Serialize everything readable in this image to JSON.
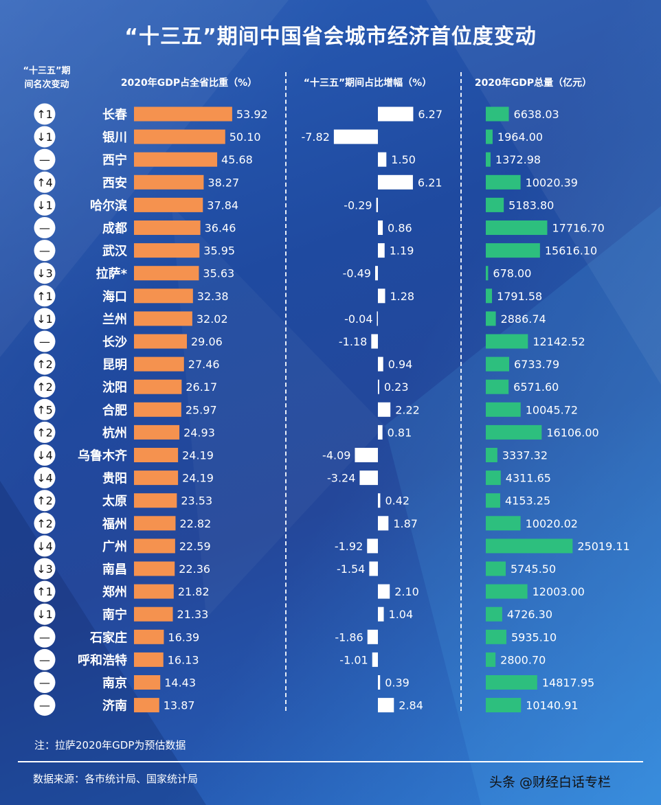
{
  "title": "“十三五”期间中国省会城市经济首位度变动",
  "headers": {
    "rank_line1": "“十三五”期",
    "rank_line2": "间名次变动",
    "share": "2020年GDP占全省比重（%）",
    "change": "“十三五”期间占比增幅（%）",
    "total": "2020年GDP总量（亿元）"
  },
  "note": "注：拉萨2020年GDP为预估数据",
  "source": "数据来源：各市统计局、国家统计局",
  "watermark": "头条 @财经白话专栏",
  "colors": {
    "share_bar": "#f5924f",
    "change_bar": "#ffffff",
    "total_bar": "#2dbf7e",
    "badge_fill": "#ffffff",
    "badge_text": "#111111",
    "city_text": "#ffffff"
  },
  "chart_data": {
    "type": "bar",
    "categories": [
      "长春",
      "银川",
      "西宁",
      "西安",
      "哈尔滨",
      "成都",
      "武汉",
      "拉萨*",
      "海口",
      "兰州",
      "长沙",
      "昆明",
      "沈阳",
      "合肥",
      "杭州",
      "乌鲁木齐",
      "贵阳",
      "太原",
      "福州",
      "广州",
      "南昌",
      "郑州",
      "南宁",
      "石家庄",
      "呼和浩特",
      "南京",
      "济南"
    ],
    "rank_change": [
      "↑1",
      "↓1",
      "—",
      "↑4",
      "↓1",
      "—",
      "—",
      "↓3",
      "↑1",
      "↓1",
      "—",
      "↑2",
      "↑2",
      "↑5",
      "↑2",
      "↓4",
      "↓4",
      "↑2",
      "↑2",
      "↓4",
      "↓3",
      "↑1",
      "↓1",
      "—",
      "—",
      "—",
      "—"
    ],
    "series": [
      {
        "name": "2020年GDP占全省比重（%）",
        "values": [
          "53.92",
          "50.10",
          "45.68",
          "38.27",
          "37.84",
          "36.46",
          "35.95",
          "35.63",
          "32.38",
          "32.02",
          "29.06",
          "27.46",
          "26.17",
          "25.97",
          "24.93",
          "24.19",
          "24.19",
          "23.53",
          "22.82",
          "22.59",
          "22.36",
          "21.82",
          "21.33",
          "16.39",
          "16.13",
          "14.43",
          "13.87"
        ]
      },
      {
        "name": "“十三五”期间占比增幅（%）",
        "values": [
          "6.27",
          "-7.82",
          "1.50",
          "6.21",
          "-0.29",
          "0.86",
          "1.19",
          "-0.49",
          "1.28",
          "-0.04",
          "-1.18",
          "0.94",
          "0.23",
          "2.22",
          "0.81",
          "-4.09",
          "-3.24",
          "0.42",
          "1.87",
          "-1.92",
          "-1.54",
          "2.10",
          "1.04",
          "-1.86",
          "-1.01",
          "0.39",
          "2.84"
        ]
      },
      {
        "name": "2020年GDP总量（亿元）",
        "values": [
          "6638.03",
          "1964.00",
          "1372.98",
          "10020.39",
          "5183.80",
          "17716.70",
          "15616.10",
          "678.00",
          "1791.58",
          "2886.74",
          "12142.52",
          "6733.79",
          "6571.60",
          "10045.72",
          "16106.00",
          "3337.32",
          "4311.65",
          "4153.25",
          "10020.02",
          "25019.11",
          "5745.50",
          "12003.00",
          "4726.30",
          "5935.10",
          "2800.70",
          "14817.95",
          "10140.91"
        ]
      }
    ]
  }
}
